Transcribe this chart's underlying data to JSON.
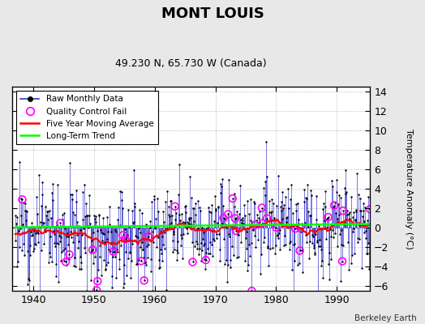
{
  "title": "MONT LOUIS",
  "subtitle": "49.230 N, 65.730 W (Canada)",
  "ylabel_right": "Temperature Anomaly (°C)",
  "credit": "Berkeley Earth",
  "xlim": [
    1936.5,
    1995.5
  ],
  "ylim": [
    -6.5,
    14.5
  ],
  "yticks": [
    -6,
    -4,
    -2,
    0,
    2,
    4,
    6,
    8,
    10,
    12,
    14
  ],
  "xticks": [
    1940,
    1950,
    1960,
    1970,
    1980,
    1990
  ],
  "seed": 12
}
